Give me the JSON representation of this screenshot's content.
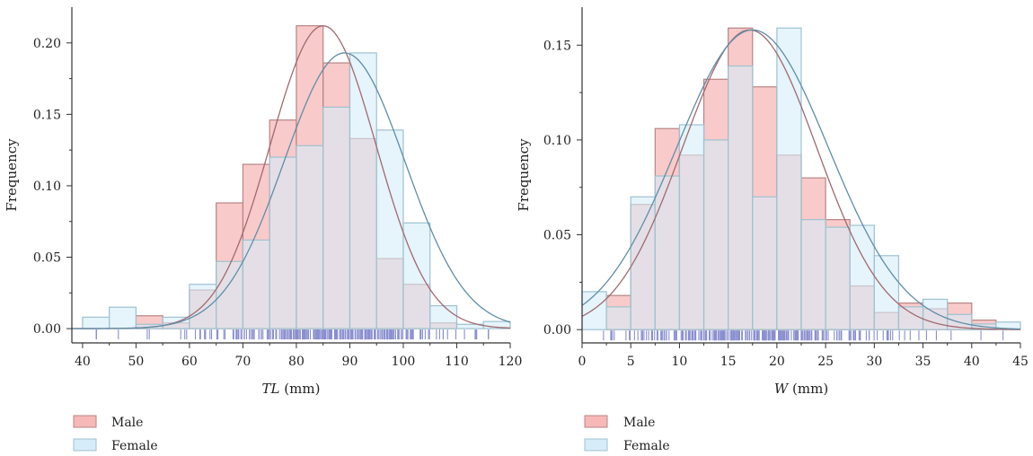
{
  "colors": {
    "male_fill": "#f7b8b8",
    "male_stroke": "#b88484",
    "female_fill": "#d6ecf8",
    "female_stroke": "#9ec2d0",
    "male_curve": "#a06a70",
    "female_curve": "#5f8ea8",
    "rug": "#8a8fcf",
    "axis": "#333333"
  },
  "chart_data": [
    {
      "type": "bar",
      "subtype": "overlaid-histogram-with-normal-fit",
      "title": "",
      "xlabel_italic": "TL",
      "xlabel_unit": " (mm)",
      "ylabel": "Frequency",
      "xlim": [
        38,
        120
      ],
      "ylim": [
        -0.01,
        0.225
      ],
      "xticks": [
        40,
        50,
        60,
        70,
        80,
        90,
        100,
        110,
        120
      ],
      "yticks": [
        0.0,
        0.05,
        0.1,
        0.15,
        0.2
      ],
      "ytick_labels": [
        "0.00",
        "0.05",
        "0.10",
        "0.15",
        "0.20"
      ],
      "bin_width": 5,
      "bin_starts": [
        40,
        45,
        50,
        55,
        60,
        65,
        70,
        75,
        80,
        85,
        90,
        95,
        100,
        105,
        110,
        115
      ],
      "series": [
        {
          "name": "Male",
          "values": [
            0,
            0,
            0.009,
            0.004,
            0.027,
            0.088,
            0.115,
            0.146,
            0.212,
            0.186,
            0.133,
            0.049,
            0.031,
            0.004,
            0,
            0
          ],
          "fit": {
            "mean": 85,
            "sd": 9.9,
            "peak": 0.212
          }
        },
        {
          "name": "Female",
          "values": [
            0.008,
            0.015,
            0.003,
            0.008,
            0.031,
            0.047,
            0.062,
            0.12,
            0.128,
            0.155,
            0.193,
            0.139,
            0.074,
            0.016,
            0.003,
            0.005
          ],
          "fit": {
            "mean": 89,
            "sd": 11.3,
            "peak": 0.193
          }
        }
      ],
      "rug_range": [
        41,
        117
      ]
    },
    {
      "type": "bar",
      "subtype": "overlaid-histogram-with-normal-fit",
      "title": "",
      "xlabel_italic": "W",
      "xlabel_unit": " (mm)",
      "ylabel": "Frequency",
      "xlim": [
        0,
        45
      ],
      "ylim": [
        -0.007,
        0.17
      ],
      "xticks": [
        0,
        5,
        10,
        15,
        20,
        25,
        30,
        35,
        40,
        45
      ],
      "yticks": [
        0.0,
        0.05,
        0.1,
        0.15
      ],
      "ytick_labels": [
        "0.00",
        "0.05",
        "0.10",
        "0.15"
      ],
      "bin_width": 2.5,
      "bin_starts": [
        0,
        2.5,
        5,
        7.5,
        10,
        12.5,
        15,
        17.5,
        20,
        22.5,
        25,
        27.5,
        30,
        32.5,
        35,
        37.5,
        40,
        42.5
      ],
      "series": [
        {
          "name": "Male",
          "values": [
            0,
            0.018,
            0.066,
            0.106,
            0.092,
            0.132,
            0.159,
            0.128,
            0.092,
            0.08,
            0.058,
            0.023,
            0.009,
            0.014,
            0.011,
            0.014,
            0.005,
            0
          ],
          "fit": {
            "mean": 17.2,
            "sd": 6.9,
            "peak": 0.158
          }
        },
        {
          "name": "Female",
          "values": [
            0.02,
            0.012,
            0.07,
            0.081,
            0.108,
            0.1,
            0.139,
            0.07,
            0.159,
            0.058,
            0.054,
            0.055,
            0.039,
            0.012,
            0.016,
            0.008,
            0.003,
            0.004
          ],
          "fit": {
            "mean": 17.5,
            "sd": 7.8,
            "peak": 0.158
          }
        }
      ],
      "rug_range": [
        1.5,
        44
      ]
    }
  ],
  "legends": [
    {
      "items": [
        {
          "label": "Male"
        },
        {
          "label": "Female"
        }
      ]
    },
    {
      "items": [
        {
          "label": "Male"
        },
        {
          "label": "Female"
        }
      ]
    }
  ]
}
